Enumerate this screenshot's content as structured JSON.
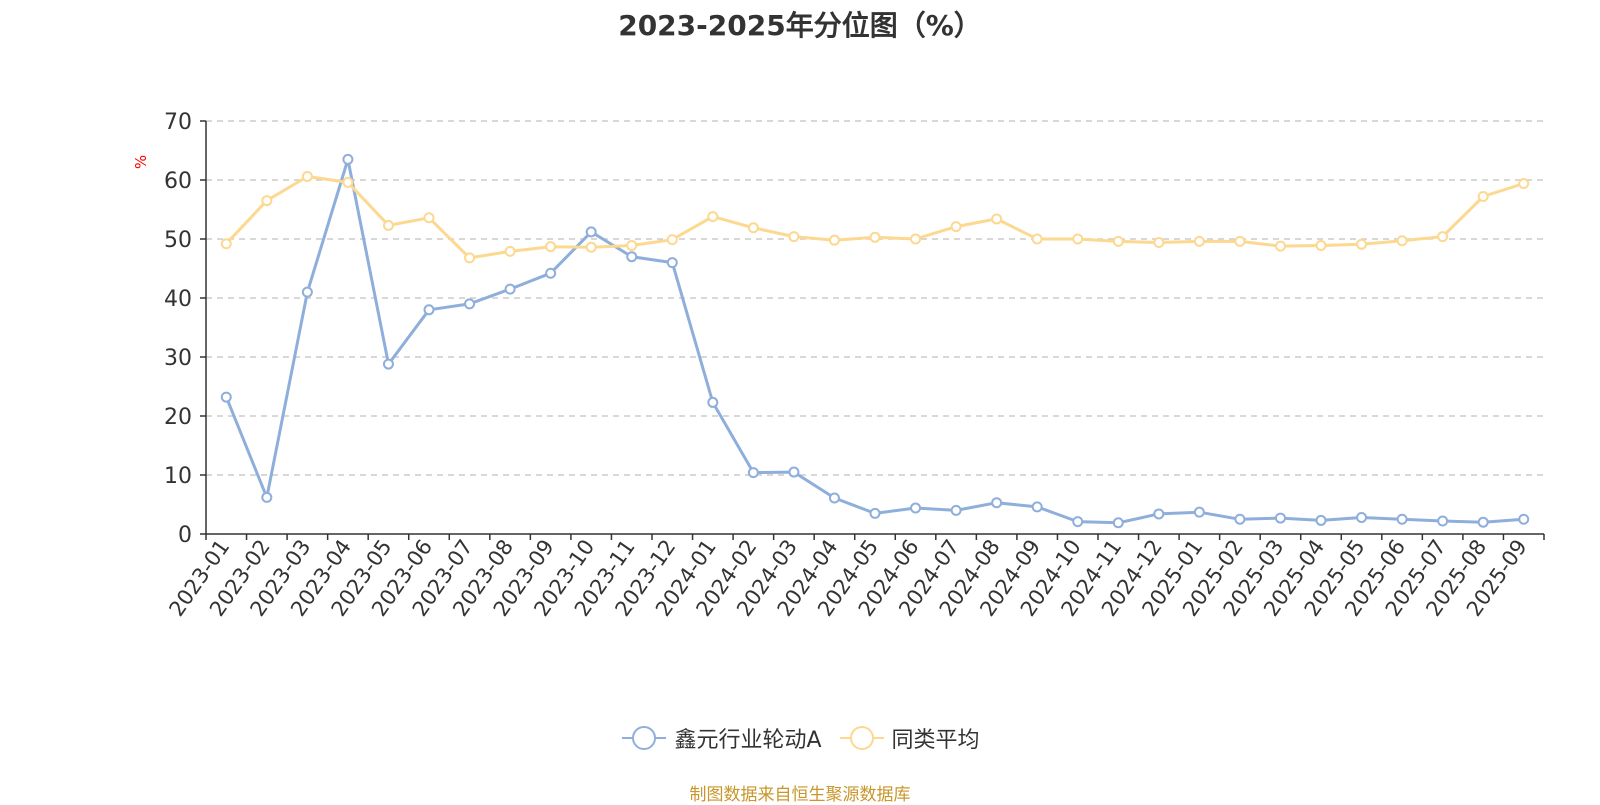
{
  "chart_data": {
    "type": "line",
    "title": "2023-2025年分位图（%）",
    "ylabel": "%",
    "xlabel": "",
    "ylim": [
      0,
      70
    ],
    "yticks": [
      0,
      10,
      20,
      30,
      40,
      50,
      60,
      70
    ],
    "grid": true,
    "legend_position": "bottom",
    "categories": [
      "2023-01",
      "2023-02",
      "2023-03",
      "2023-04",
      "2023-05",
      "2023-06",
      "2023-07",
      "2023-08",
      "2023-09",
      "2023-10",
      "2023-11",
      "2023-12",
      "2024-01",
      "2024-02",
      "2024-03",
      "2024-04",
      "2024-05",
      "2024-06",
      "2024-07",
      "2024-08",
      "2024-09",
      "2024-10",
      "2024-11",
      "2024-12",
      "2025-01",
      "2025-02",
      "2025-03",
      "2025-04",
      "2025-05",
      "2025-06",
      "2025-07",
      "2025-08",
      "2025-09"
    ],
    "series": [
      {
        "name": "鑫元行业轮动A",
        "color": "#8eaedb",
        "values": [
          23.2,
          6.2,
          41.0,
          63.5,
          28.8,
          38.0,
          39.0,
          41.5,
          44.2,
          51.2,
          47.0,
          46.0,
          22.3,
          10.4,
          10.5,
          6.1,
          3.5,
          4.4,
          4.0,
          5.3,
          4.6,
          2.1,
          1.9,
          3.4,
          3.7,
          2.5,
          2.7,
          2.3,
          2.8,
          2.5,
          2.2,
          2.0,
          2.5
        ]
      },
      {
        "name": "同类平均",
        "color": "#fcd890",
        "values": [
          49.2,
          56.5,
          60.6,
          59.6,
          52.3,
          53.6,
          46.8,
          47.9,
          48.7,
          48.6,
          48.9,
          49.9,
          53.8,
          51.9,
          50.4,
          49.8,
          50.3,
          50.0,
          52.1,
          53.4,
          50.0,
          50.0,
          49.6,
          49.4,
          49.6,
          49.6,
          48.8,
          48.9,
          49.1,
          49.7,
          50.4,
          57.2,
          59.4
        ]
      }
    ]
  },
  "source_note": "制图数据来自恒生聚源数据库"
}
